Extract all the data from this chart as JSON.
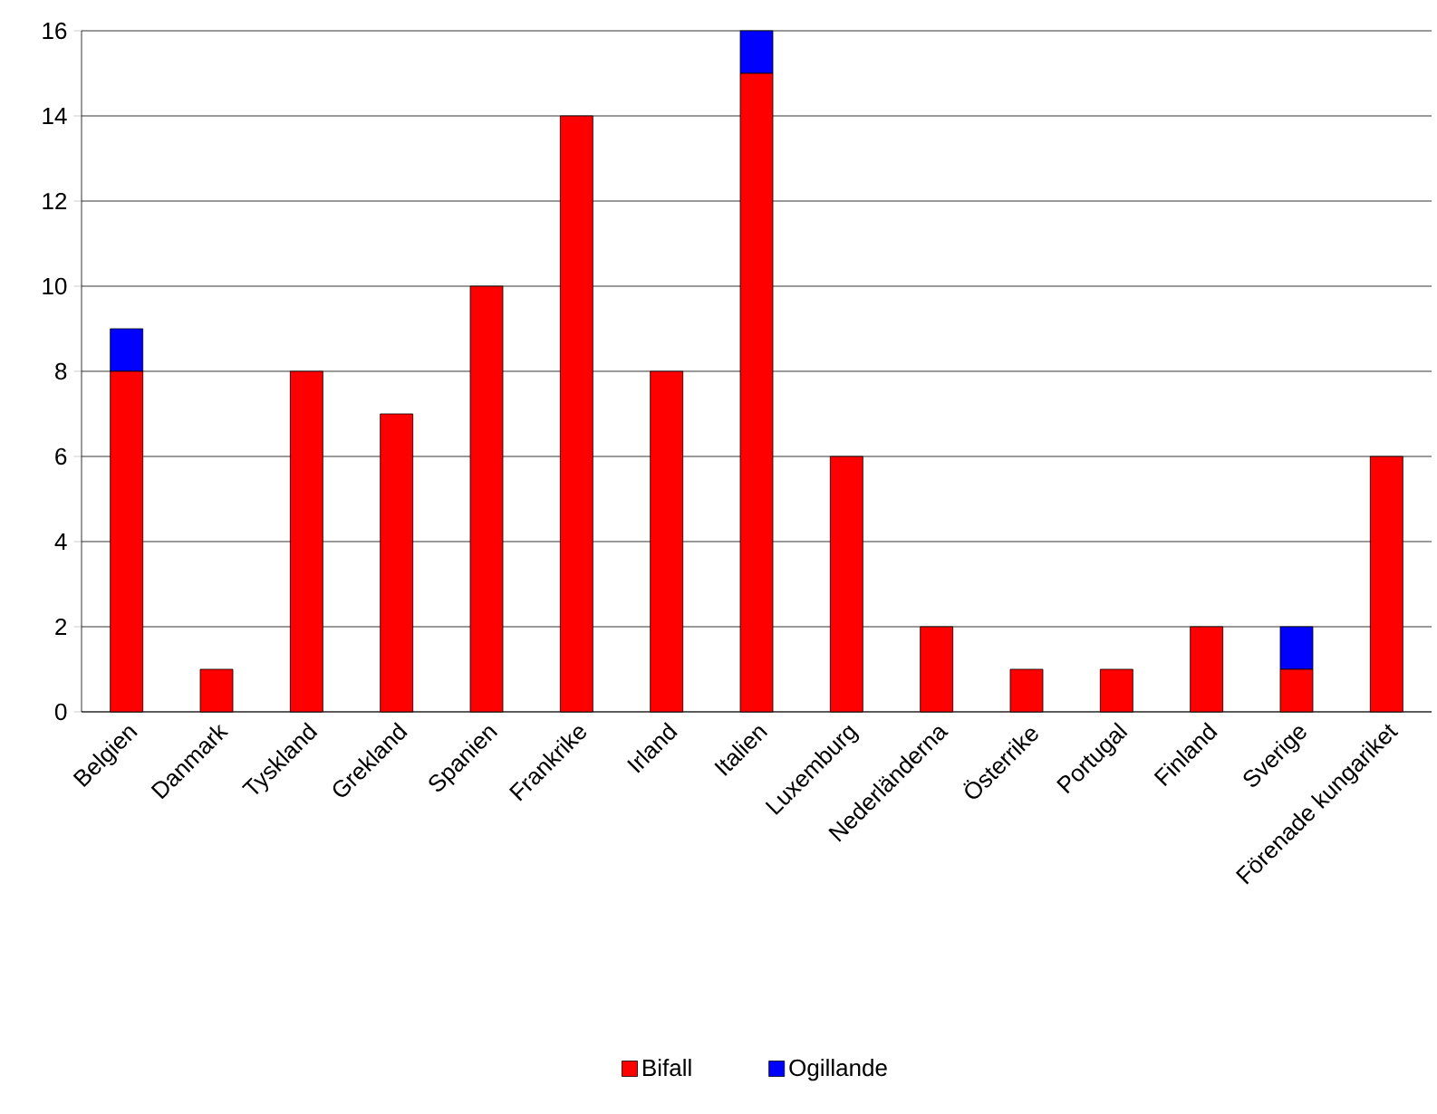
{
  "chart_data": {
    "type": "bar",
    "stacked": true,
    "categories": [
      "Belgien",
      "Danmark",
      "Tyskland",
      "Grekland",
      "Spanien",
      "Frankrike",
      "Irland",
      "Italien",
      "Luxemburg",
      "Nederländerna",
      "Österrike",
      "Portugal",
      "Finland",
      "Sverige",
      "Förenade kungariket"
    ],
    "series": [
      {
        "name": "Bifall",
        "color": "#ff0000",
        "values": [
          8,
          1,
          8,
          7,
          10,
          14,
          8,
          15,
          6,
          2,
          1,
          1,
          2,
          1,
          6
        ]
      },
      {
        "name": "Ogillande",
        "color": "#0000ff",
        "values": [
          1,
          0,
          0,
          0,
          0,
          0,
          0,
          1,
          0,
          0,
          0,
          0,
          0,
          1,
          0
        ]
      }
    ],
    "ylim": [
      0,
      16
    ],
    "yticks": [
      0,
      2,
      4,
      6,
      8,
      10,
      12,
      14,
      16
    ],
    "grid": "y",
    "legend": "bottom"
  }
}
